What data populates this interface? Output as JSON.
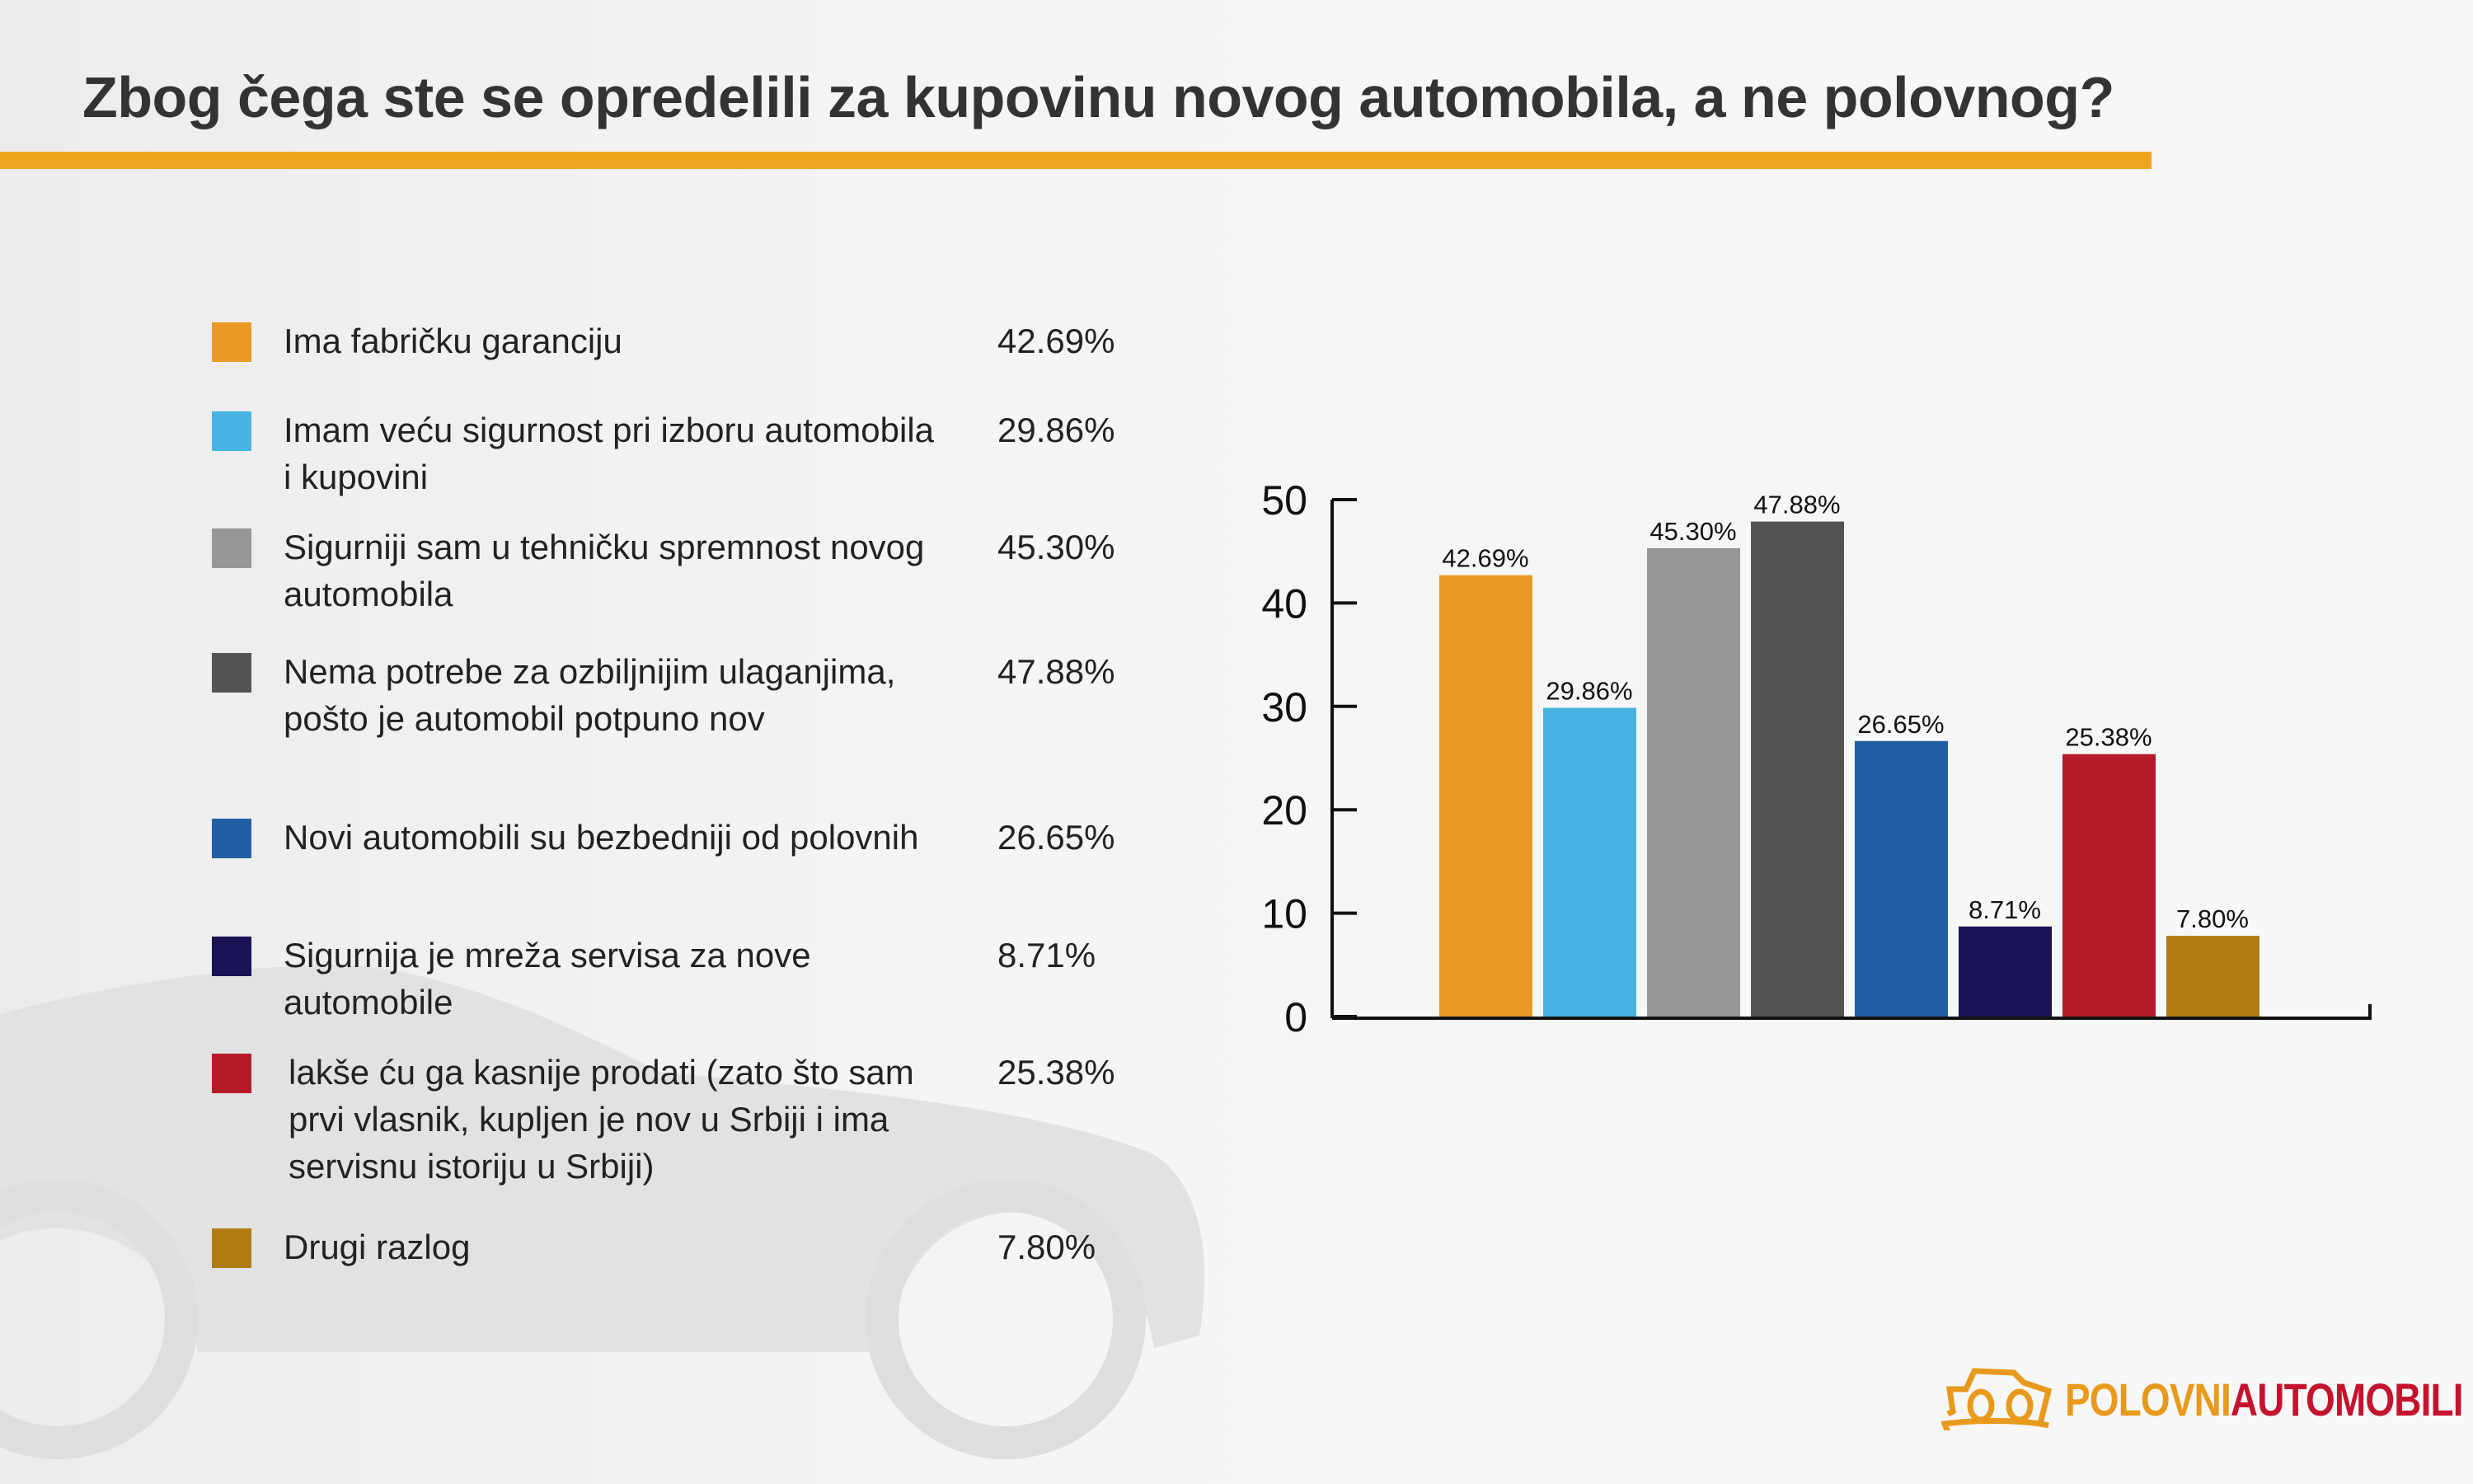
{
  "title": "Zbog čega ste se opredelili za kupovinu novog automobila, a ne polovnog?",
  "legend": [
    {
      "label": "Ima fabričku garanciju",
      "value": "42.69%",
      "color": "#e89a25"
    },
    {
      "label": "Imam veću sigurnost pri izboru automobila i kupovini",
      "value": "29.86%",
      "color": "#48b3e2"
    },
    {
      "label": "Sigurniji sam u tehničku spremnost novog automobila",
      "value": "45.30%",
      "color": "#979797"
    },
    {
      "label": "Nema potrebe za ozbiljnijim ulaganjima, pošto je automobil potpuno nov",
      "value": "47.88%",
      "color": "#545454"
    },
    {
      "label": "Novi automobili su bezbedniji od polovnih",
      "value": "26.65%",
      "color": "#225ea3"
    },
    {
      "label": "Sigurnija je mreža servisa za nove automobile",
      "value": "8.71%",
      "color": "#1a1355"
    },
    {
      "label": "lakše ću ga kasnije prodati (zato što sam prvi vlasnik, kupljen je nov u Srbiji i ima servisnu istoriju u Srbiji)",
      "value": "25.38%",
      "color": "#b51a29"
    },
    {
      "label": "Drugi razlog",
      "value": "7.80%",
      "color": "#b07c13"
    }
  ],
  "chart_data": {
    "type": "bar",
    "categories": [
      "Ima fabričku garanciju",
      "Imam veću sigurnost pri izboru automobila i kupovini",
      "Sigurniji sam u tehničku spremnost novog automobila",
      "Nema potrebe za ozbiljnijim ulaganjima, pošto je automobil potpuno nov",
      "Novi automobili su bezbedniji od polovnih",
      "Sigurnija je mreža servisa za nove automobile",
      "lakše ću ga kasnije prodati (zato što sam prvi vlasnik, kupljen je nov u Srbiji i ima servisnu istoriju u Srbiji)",
      "Drugi razlog"
    ],
    "values": [
      42.69,
      29.86,
      45.3,
      47.88,
      26.65,
      8.71,
      25.38,
      7.8
    ],
    "data_labels": [
      "42.69%",
      "29.86%",
      "45.30%",
      "47.88%",
      "26.65%",
      "8.71%",
      "25.38%",
      "7.80%"
    ],
    "colors": [
      "#e89a25",
      "#48b3e2",
      "#979797",
      "#545454",
      "#225ea3",
      "#1a1355",
      "#b51a29",
      "#b07c13"
    ],
    "ylim": [
      0,
      50
    ],
    "yticks": [
      "0",
      "10",
      "20",
      "30",
      "40",
      "50"
    ],
    "grid": false,
    "legend": "left"
  },
  "logo": {
    "part1": "POLOVNI",
    "part2": "AUTOMOBILI",
    "color1": "#e89a1c",
    "color2": "#c4132e"
  },
  "accent_color": "#f0a520"
}
